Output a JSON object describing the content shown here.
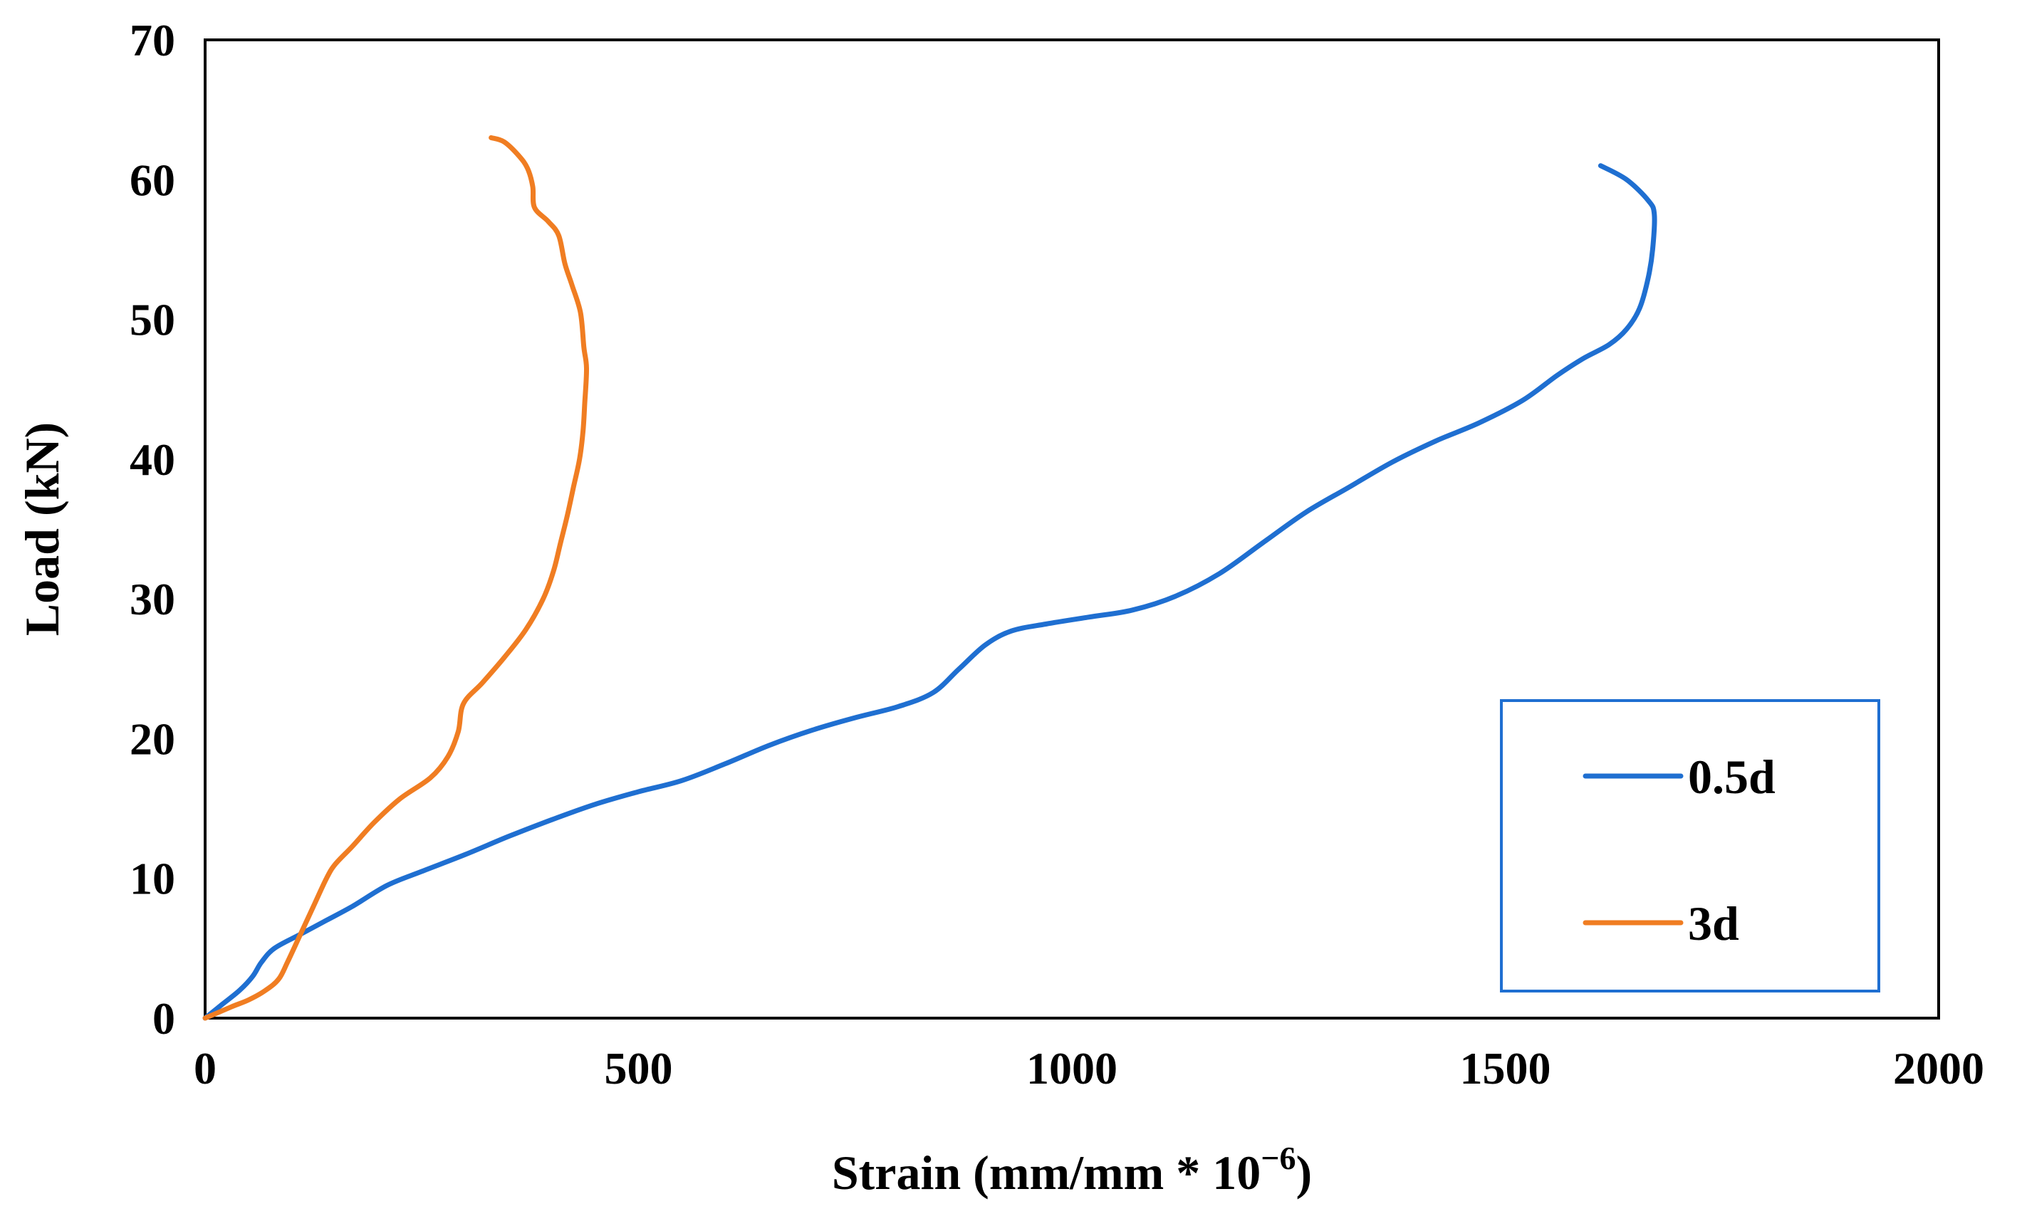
{
  "chart_data": {
    "type": "line",
    "title": "",
    "xlabel": "Strain (mm/mm * 10",
    "xlabel_superscript": "−6",
    "xlabel_suffix": ")",
    "ylabel": "Load (kN)",
    "xlim": [
      0,
      2000
    ],
    "ylim": [
      0,
      70
    ],
    "xticks": [
      0,
      500,
      1000,
      1500,
      2000
    ],
    "yticks": [
      0,
      10,
      20,
      30,
      40,
      50,
      60,
      70
    ],
    "grid": false,
    "legend_position": "bottom-right",
    "series": [
      {
        "name": "0.5d",
        "color": "#1f6fd1",
        "points": [
          [
            0,
            0
          ],
          [
            20,
            1
          ],
          [
            40,
            2
          ],
          [
            55,
            3
          ],
          [
            65,
            4
          ],
          [
            80,
            5
          ],
          [
            110,
            6
          ],
          [
            140,
            7
          ],
          [
            170,
            8
          ],
          [
            210,
            9.5
          ],
          [
            250,
            10.5
          ],
          [
            300,
            11.7
          ],
          [
            350,
            13
          ],
          [
            400,
            14.2
          ],
          [
            450,
            15.3
          ],
          [
            500,
            16.2
          ],
          [
            550,
            17.0
          ],
          [
            600,
            18.2
          ],
          [
            650,
            19.5
          ],
          [
            700,
            20.6
          ],
          [
            750,
            21.5
          ],
          [
            800,
            22.3
          ],
          [
            840,
            23.3
          ],
          [
            870,
            25.0
          ],
          [
            900,
            26.7
          ],
          [
            930,
            27.7
          ],
          [
            970,
            28.2
          ],
          [
            1020,
            28.7
          ],
          [
            1070,
            29.2
          ],
          [
            1120,
            30.2
          ],
          [
            1170,
            31.8
          ],
          [
            1220,
            34.0
          ],
          [
            1270,
            36.2
          ],
          [
            1320,
            38.0
          ],
          [
            1370,
            39.8
          ],
          [
            1420,
            41.3
          ],
          [
            1470,
            42.6
          ],
          [
            1520,
            44.2
          ],
          [
            1560,
            46.0
          ],
          [
            1590,
            47.2
          ],
          [
            1620,
            48.2
          ],
          [
            1640,
            49.3
          ],
          [
            1655,
            50.8
          ],
          [
            1665,
            53.0
          ],
          [
            1670,
            55.0
          ],
          [
            1672,
            57.5
          ],
          [
            1665,
            58.5
          ],
          [
            1640,
            60.0
          ],
          [
            1610,
            61.0
          ]
        ]
      },
      {
        "name": "3d",
        "color": "#f07d22",
        "points": [
          [
            0,
            0
          ],
          [
            30,
            0.8
          ],
          [
            50,
            1.3
          ],
          [
            70,
            2.0
          ],
          [
            85,
            2.8
          ],
          [
            95,
            4.0
          ],
          [
            110,
            6.0
          ],
          [
            125,
            8.0
          ],
          [
            140,
            10.0
          ],
          [
            150,
            11.0
          ],
          [
            170,
            12.3
          ],
          [
            195,
            14.0
          ],
          [
            225,
            15.7
          ],
          [
            260,
            17.2
          ],
          [
            280,
            18.7
          ],
          [
            292,
            20.5
          ],
          [
            298,
            22.5
          ],
          [
            320,
            24.0
          ],
          [
            345,
            25.8
          ],
          [
            370,
            27.8
          ],
          [
            390,
            30.0
          ],
          [
            402,
            32.0
          ],
          [
            410,
            34.0
          ],
          [
            418,
            36.0
          ],
          [
            425,
            38.0
          ],
          [
            432,
            40.0
          ],
          [
            436,
            42.0
          ],
          [
            438,
            44.0
          ],
          [
            440,
            46.5
          ],
          [
            437,
            48.0
          ],
          [
            433,
            50.5
          ],
          [
            423,
            52.5
          ],
          [
            415,
            54.0
          ],
          [
            408,
            56.0
          ],
          [
            396,
            57.0
          ],
          [
            380,
            58.0
          ],
          [
            378,
            59.5
          ],
          [
            372,
            60.8
          ],
          [
            362,
            61.7
          ],
          [
            345,
            62.7
          ],
          [
            330,
            63.0
          ]
        ]
      }
    ]
  }
}
